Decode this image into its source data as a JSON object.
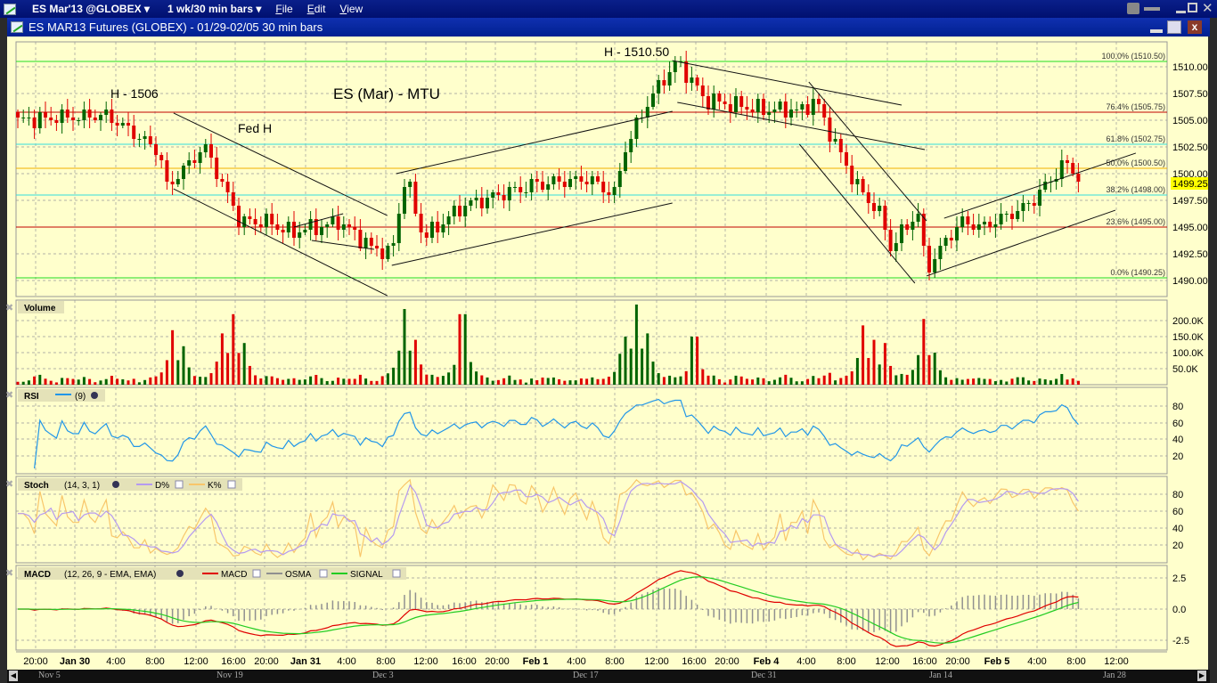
{
  "menubar": {
    "symbol": "ES Mar'13 @GLOBEX ▾",
    "timeframe": "1 wk/30 min bars ▾",
    "menus": [
      "File",
      "Edit",
      "View"
    ]
  },
  "titlebar": {
    "title": "ES MAR13 Futures (GLOBEX) - 01/29-02/05 30 min bars"
  },
  "annotations": {
    "high1": "H - 1506",
    "fed": "Fed H",
    "label": "ES (Mar) - MTU",
    "high2": "H - 1510.50"
  },
  "current_price": "1499.25",
  "colors": {
    "up": "#006400",
    "down": "#e00000",
    "bg": "#ffffcc",
    "rsi": "#2196e8",
    "d": "#b59af0",
    "k": "#f8c66a",
    "macd": "#e00000",
    "osma": "#909090",
    "signal": "#22cc22"
  },
  "panels": {
    "volume": {
      "title": "Volume",
      "ticks": [
        "200.0K",
        "150.0K",
        "100.0K",
        "50.0K"
      ]
    },
    "rsi": {
      "title": "RSI",
      "params": "(9)",
      "ticks": [
        "80",
        "60",
        "40",
        "20"
      ]
    },
    "stoch": {
      "title": "Stoch",
      "params": "(14, 3, 1)",
      "d": "D%",
      "k": "K%",
      "ticks": [
        "80",
        "60",
        "40",
        "20"
      ]
    },
    "macd": {
      "title": "MACD",
      "params": "(12, 26, 9 - EMA, EMA)",
      "macd": "MACD",
      "osma": "OSMA",
      "signal": "SIGNAL",
      "ticks": [
        "2.5",
        "0.0",
        "-2.5"
      ]
    }
  },
  "chart_data": {
    "type": "candlestick",
    "title": "ES MAR13 Futures (GLOBEX) - 01/29-02/05 30 min bars",
    "price_ticks": [
      "1510.00",
      "1507.50",
      "1505.00",
      "1502.50",
      "1500.00",
      "1497.50",
      "1495.00",
      "1492.50",
      "1490.00"
    ],
    "ylim": [
      1488.5,
      1512
    ],
    "bars": 193,
    "price_path": [
      [
        0,
        1505
      ],
      [
        16,
        1505.5
      ],
      [
        25.8,
        1502
      ],
      [
        26.6,
        1498.5
      ],
      [
        33.9,
        1502.5
      ],
      [
        40.3,
        1495.5
      ],
      [
        45.2,
        1495.5
      ],
      [
        50,
        1494.5
      ],
      [
        58.1,
        1495.5
      ],
      [
        64.5,
        1493
      ],
      [
        67.7,
        1492.5
      ],
      [
        70.2,
        1500
      ],
      [
        73.4,
        1494
      ],
      [
        80.6,
        1497
      ],
      [
        87.1,
        1498
      ],
      [
        93.5,
        1499
      ],
      [
        103.2,
        1499.5
      ],
      [
        108.1,
        1498
      ],
      [
        109.7,
        1502
      ],
      [
        112.9,
        1505.5
      ],
      [
        117,
        1509
      ],
      [
        119.4,
        1510.5
      ],
      [
        124.2,
        1507
      ],
      [
        133.9,
        1506
      ],
      [
        142,
        1506
      ],
      [
        144.4,
        1507
      ],
      [
        146.8,
        1504
      ],
      [
        151.6,
        1499
      ],
      [
        156.5,
        1496
      ],
      [
        158,
        1493
      ],
      [
        162.9,
        1496.5
      ],
      [
        164.5,
        1491
      ],
      [
        167.7,
        1493.5
      ],
      [
        171,
        1495.5
      ],
      [
        174.2,
        1495
      ],
      [
        179,
        1496
      ],
      [
        183.9,
        1497.5
      ],
      [
        188.7,
        1500.5
      ],
      [
        190.3,
        1501
      ],
      [
        192,
        1499.25
      ]
    ],
    "volume_spikes": [
      [
        28,
        170
      ],
      [
        30,
        120
      ],
      [
        37,
        160
      ],
      [
        39,
        220
      ],
      [
        41,
        130
      ],
      [
        70,
        236
      ],
      [
        72,
        140
      ],
      [
        80.6,
        220
      ],
      [
        109.7,
        150
      ],
      [
        112,
        250
      ],
      [
        114,
        160
      ],
      [
        122.6,
        150
      ],
      [
        153,
        185
      ],
      [
        155,
        140
      ],
      [
        157,
        130
      ],
      [
        164,
        205
      ],
      [
        166,
        100
      ]
    ],
    "fib_levels": [
      {
        "label": "100.0% (1510.50)",
        "price": 1510.5,
        "color": "#22dd22"
      },
      {
        "label": "76.4% (1505.75)",
        "price": 1505.75,
        "color": "#c00000"
      },
      {
        "label": "61.8% (1502.75)",
        "price": 1502.75,
        "color": "#33dddd"
      },
      {
        "label": "50.0% (1500.50)",
        "price": 1500.5,
        "color": "#f0b000"
      },
      {
        "label": "38.2% (1498.00)",
        "price": 1498.0,
        "color": "#33dddd"
      },
      {
        "label": "23.6% (1495.00)",
        "price": 1495.0,
        "color": "#c00000"
      },
      {
        "label": "0.0% (1490.25)",
        "price": 1490.25,
        "color": "#22dd22"
      }
    ],
    "trendlines": [
      [
        28.2,
        1505.67,
        66.9,
        1496.08
      ],
      [
        28.2,
        1498.58,
        66.9,
        1488.58
      ],
      [
        50,
        1495,
        58.9,
        1496.25
      ],
      [
        53.2,
        1493.75,
        64.5,
        1492.92
      ],
      [
        68.5,
        1500,
        118.5,
        1505.83
      ],
      [
        67.7,
        1491.42,
        118.5,
        1497.25
      ],
      [
        118.5,
        1510.58,
        160,
        1506.42
      ],
      [
        119.4,
        1506.67,
        164.2,
        1502.25
      ],
      [
        143.2,
        1508.58,
        164.5,
        1495.58
      ],
      [
        141.5,
        1502.75,
        162.4,
        1489.75
      ],
      [
        167.7,
        1495.83,
        202.4,
        1501.92
      ],
      [
        164.5,
        1490.42,
        198.7,
        1496.58
      ]
    ],
    "x_labels": [
      [
        "20:00",
        0
      ],
      [
        "Jan 30",
        1
      ],
      [
        "4:00",
        0
      ],
      [
        "8:00",
        0
      ],
      [
        "12:00",
        0
      ],
      [
        "16:00",
        0
      ],
      [
        "20:00",
        0
      ],
      [
        "Jan 31",
        1
      ],
      [
        "4:00",
        0
      ],
      [
        "8:00",
        0
      ],
      [
        "12:00",
        0
      ],
      [
        "16:00",
        0
      ],
      [
        "20:00",
        0
      ],
      [
        "Feb 1",
        1
      ],
      [
        "4:00",
        0
      ],
      [
        "8:00",
        0
      ],
      [
        "12:00",
        0
      ],
      [
        "16:00",
        0
      ],
      [
        "20:00",
        0
      ],
      [
        "Feb 4",
        1
      ],
      [
        "4:00",
        0
      ],
      [
        "8:00",
        0
      ],
      [
        "12:00",
        0
      ],
      [
        "16:00",
        0
      ],
      [
        "20:00",
        0
      ],
      [
        "Feb 5",
        1
      ],
      [
        "4:00",
        0
      ],
      [
        "8:00",
        0
      ],
      [
        "12:00",
        0
      ]
    ],
    "indicators": {
      "rsi_period": 9,
      "stoch": [
        14,
        3,
        1
      ],
      "macd": [
        12,
        26,
        9
      ]
    }
  },
  "scroller": {
    "labels": [
      "Nov 5",
      "Nov 19",
      "Dec 3",
      "Dec 17",
      "Dec 31",
      "Jan 14",
      "Jan 28"
    ]
  }
}
